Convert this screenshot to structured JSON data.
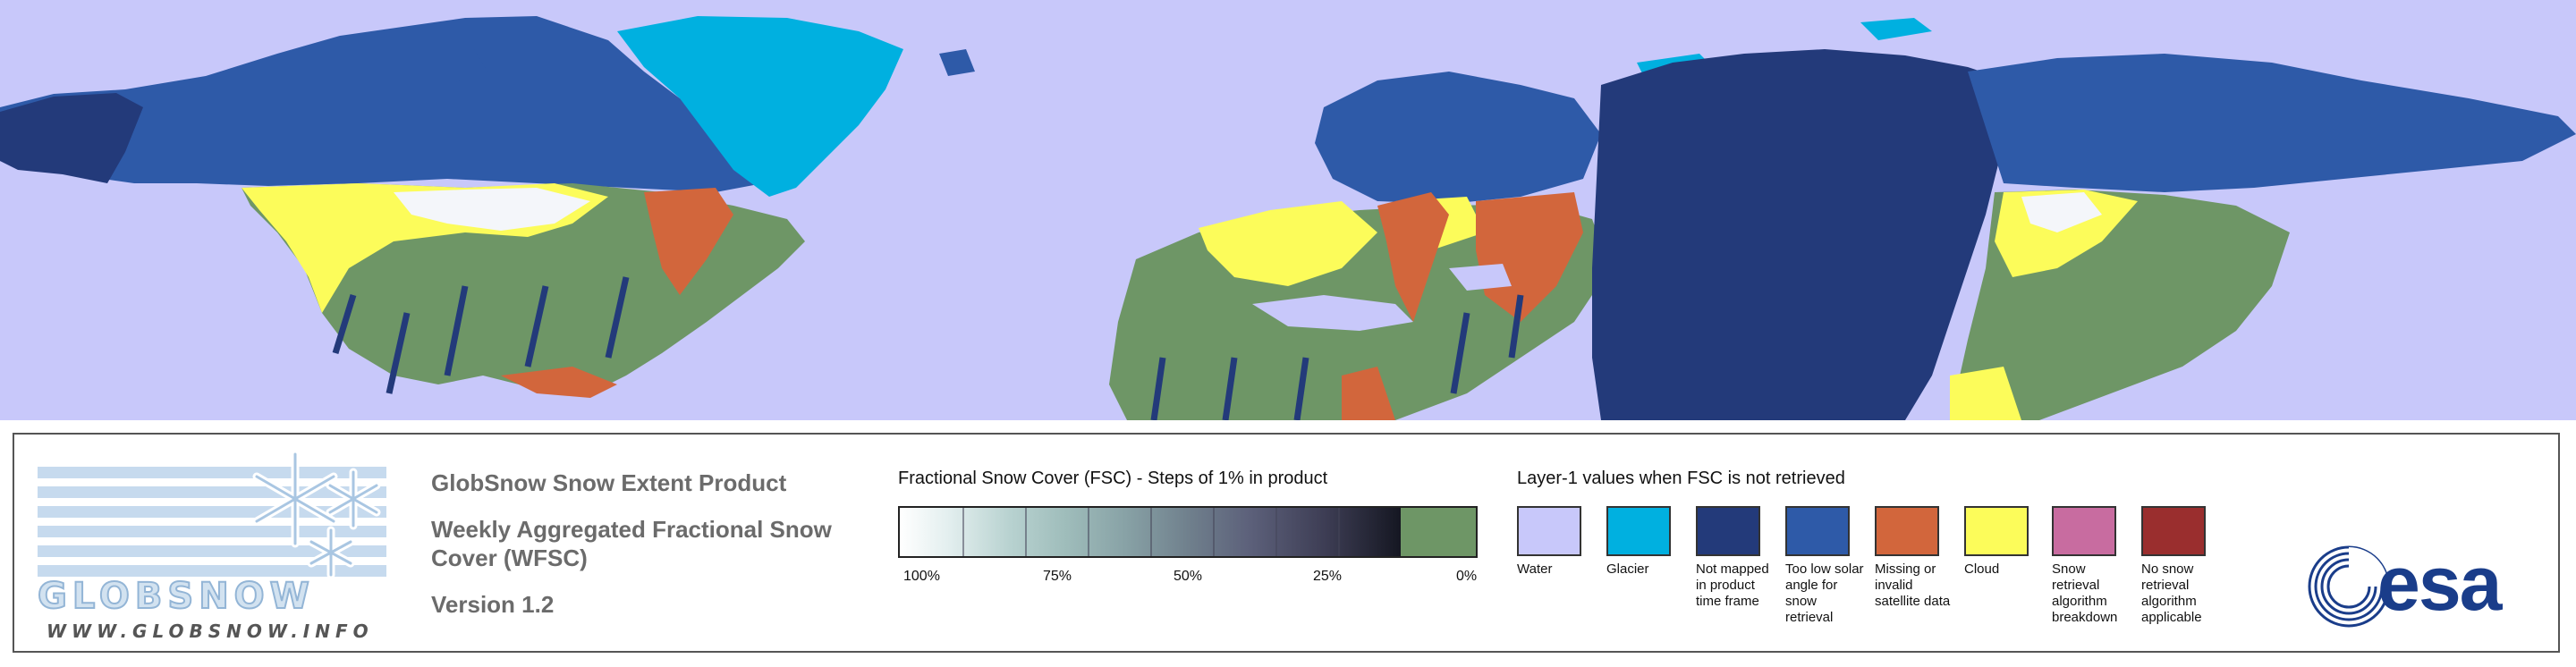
{
  "colors": {
    "water": "#c8c8fa",
    "glacier": "#00b0e0",
    "not_mapped": "#233a7a",
    "too_low_solar": "#2e5aa8",
    "missing_invalid": "#d2663c",
    "cloud": "#fcfc5a",
    "algorithm_breakdown": "#c86ca0",
    "no_snow_algorithm": "#9a2e2e",
    "no_snow": "#6e9666",
    "snow_full": "#ffffff",
    "snow_dark": "#151722"
  },
  "logo": {
    "wordmark": "GLOBSNOW",
    "url": "WWW.GLOBSNOW.INFO",
    "snowflake_icon": "snowflake-icon"
  },
  "product": {
    "title_line1": "GlobSnow Snow Extent Product",
    "title_line2": "Weekly Aggregated Fractional Snow",
    "title_line3": "Cover (WFSC)",
    "version": "Version 1.2"
  },
  "fsc_scale": {
    "heading": "Fractional Snow Cover (FSC) - Steps of 1% in product",
    "ticks": [
      "100%",
      "75%",
      "50%",
      "25%",
      "0%"
    ]
  },
  "layer1": {
    "heading": "Layer-1 values when FSC is not retrieved",
    "items": [
      {
        "label": "Water",
        "color": "#c8c8fa"
      },
      {
        "label": "Glacier",
        "color": "#00b0e0"
      },
      {
        "label": "Not mapped in product time frame",
        "color": "#233a7a"
      },
      {
        "label": "Too low solar angle for snow retrieval",
        "color": "#2e5aa8"
      },
      {
        "label": "Missing or invalid satellite data",
        "color": "#d2663c"
      },
      {
        "label": "Cloud",
        "color": "#fcfc5a"
      },
      {
        "label": "Snow retrieval algorithm breakdown",
        "color": "#c86ca0"
      },
      {
        "label": "No snow retrieval algorithm applicable",
        "color": "#9a2e2e"
      }
    ]
  },
  "esa_logo": {
    "text": "esa",
    "icon": "esa-swirl-icon"
  }
}
